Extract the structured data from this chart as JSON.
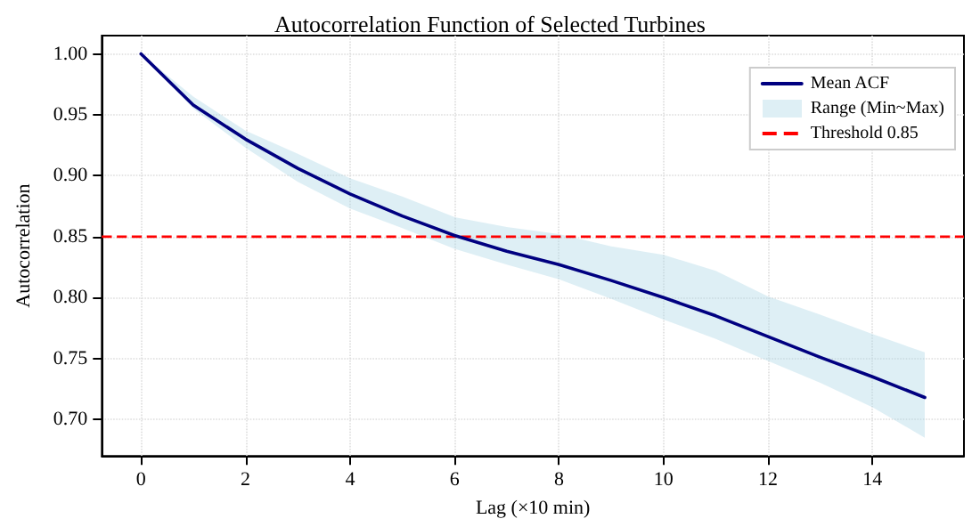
{
  "chart_data": {
    "type": "line",
    "title": "Autocorrelation Function of Selected Turbines",
    "xlabel": "Lag (×10 min)",
    "ylabel": "Autocorrelation",
    "x": [
      0,
      1,
      2,
      3,
      4,
      5,
      6,
      7,
      8,
      9,
      10,
      11,
      12,
      13,
      14,
      15
    ],
    "series": [
      {
        "name": "Mean ACF",
        "color": "#000080",
        "values": [
          1.0,
          0.958,
          0.93,
          0.906,
          0.885,
          0.867,
          0.851,
          0.838,
          0.827,
          0.814,
          0.8,
          0.785,
          0.768,
          0.751,
          0.735,
          0.718
        ],
        "lower": [
          1.0,
          0.955,
          0.923,
          0.895,
          0.873,
          0.857,
          0.84,
          0.827,
          0.815,
          0.799,
          0.782,
          0.766,
          0.748,
          0.73,
          0.71,
          0.685
        ],
        "upper": [
          1.0,
          0.965,
          0.937,
          0.918,
          0.898,
          0.883,
          0.866,
          0.858,
          0.852,
          0.842,
          0.835,
          0.822,
          0.801,
          0.786,
          0.77,
          0.755
        ]
      }
    ],
    "annotations": [
      "Range (Min~Max)"
    ],
    "ref_lines": [
      {
        "axis": "y",
        "value": 0.85,
        "label": "Threshold 0.85",
        "color": "#ff0000",
        "line_style": "dashed"
      }
    ],
    "xlim": [
      -0.75,
      15.75
    ],
    "xticks": [
      0,
      2,
      4,
      6,
      8,
      10,
      12,
      14
    ],
    "ylim": [
      0.67,
      1.015
    ],
    "yticks": [
      {
        "value": 0.7,
        "label": "0.70"
      },
      {
        "value": 0.75,
        "label": "0.75"
      },
      {
        "value": 0.8,
        "label": "0.80"
      },
      {
        "value": 0.85,
        "label": "0.85"
      },
      {
        "value": 0.9,
        "label": "0.90"
      },
      {
        "value": 0.95,
        "label": "0.95"
      },
      {
        "value": 1.0,
        "label": "1.00"
      }
    ],
    "grid": true,
    "legend": "top right",
    "marker": "none",
    "line_style": "solid"
  }
}
